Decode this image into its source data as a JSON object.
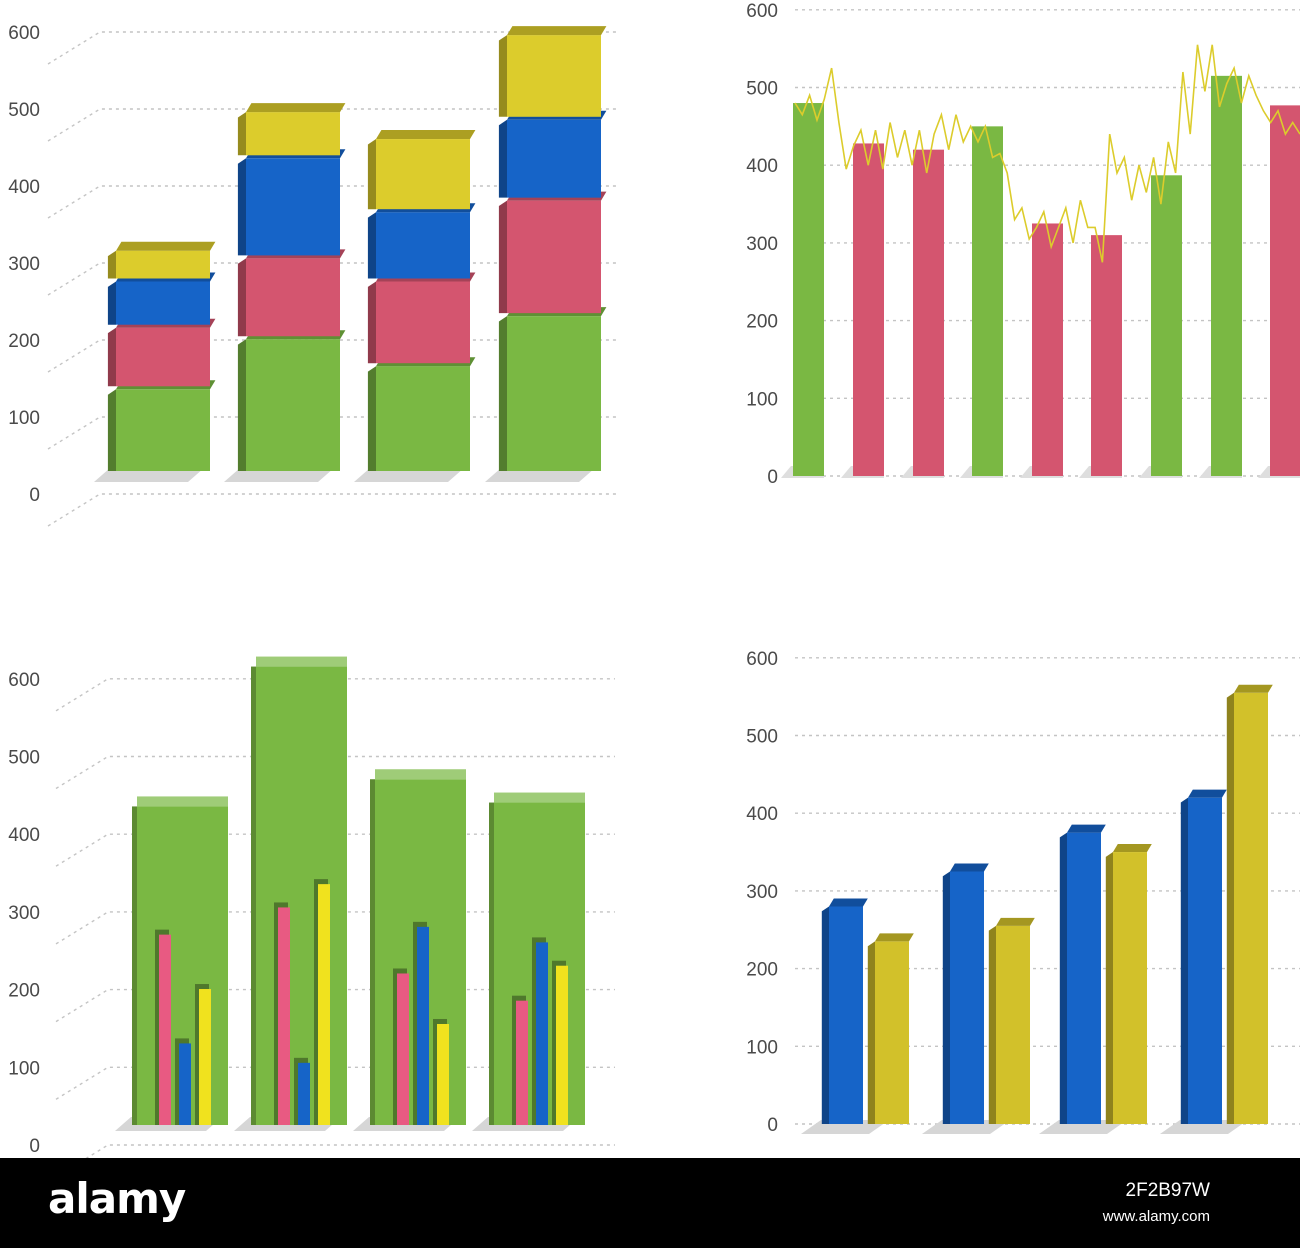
{
  "chart_data": [
    {
      "type": "bar",
      "stacked": true,
      "position": "top-left",
      "yticks": [
        "0",
        "100",
        "200",
        "300",
        "400",
        "500",
        "600"
      ],
      "ylim": [
        0,
        600
      ],
      "grid": true,
      "series": [
        {
          "color": "#7ab843",
          "values": [
            110,
            175,
            140,
            205
          ]
        },
        {
          "color": "#d4556f",
          "values": [
            80,
            105,
            110,
            150
          ]
        },
        {
          "color": "#1664c8",
          "values": [
            60,
            130,
            90,
            105
          ]
        },
        {
          "color": "#dccc2c",
          "values": [
            40,
            60,
            95,
            110
          ]
        }
      ]
    },
    {
      "type": "bar",
      "position": "top-right",
      "yticks": [
        "0",
        "100",
        "200",
        "300",
        "400",
        "500",
        "600"
      ],
      "ylim": [
        0,
        600
      ],
      "grid": true,
      "bars": [
        {
          "value": 480,
          "color": "#7ab843"
        },
        {
          "value": 428,
          "color": "#d4556f"
        },
        {
          "value": 420,
          "color": "#d4556f"
        },
        {
          "value": 450,
          "color": "#7ab843"
        },
        {
          "value": 325,
          "color": "#d4556f"
        },
        {
          "value": 310,
          "color": "#d4556f"
        },
        {
          "value": 387,
          "color": "#7ab843"
        },
        {
          "value": 515,
          "color": "#7ab843"
        },
        {
          "value": 477,
          "color": "#d4556f"
        }
      ],
      "line": {
        "color": "#dccc2c",
        "values": [
          480,
          465,
          490,
          458,
          485,
          525,
          455,
          395,
          425,
          445,
          400,
          445,
          395,
          455,
          410,
          445,
          400,
          445,
          390,
          440,
          465,
          420,
          465,
          430,
          450,
          430,
          450,
          410,
          415,
          390,
          330,
          345,
          305,
          320,
          340,
          295,
          320,
          345,
          300,
          355,
          320,
          320,
          275,
          440,
          390,
          410,
          355,
          400,
          365,
          410,
          350,
          430,
          390,
          520,
          440,
          555,
          495,
          555,
          475,
          505,
          525,
          480,
          515,
          490,
          470,
          455,
          470,
          440,
          455,
          440
        ]
      }
    },
    {
      "type": "bar",
      "position": "bottom-left",
      "yticks": [
        "0",
        "100",
        "200",
        "300",
        "400",
        "500",
        "600"
      ],
      "ylim": [
        0,
        600
      ],
      "grid": true,
      "background_color": "#7ab843",
      "background_values": [
        410,
        590,
        445,
        415
      ],
      "series": [
        {
          "color": "#e85a82",
          "values": [
            245,
            280,
            195,
            160
          ]
        },
        {
          "color": "#1664c8",
          "values": [
            105,
            80,
            255,
            235
          ]
        },
        {
          "color": "#f0e21e",
          "values": [
            175,
            310,
            130,
            205
          ]
        }
      ]
    },
    {
      "type": "bar",
      "position": "bottom-right",
      "yticks": [
        "0",
        "100",
        "200",
        "300",
        "400",
        "500",
        "600"
      ],
      "ylim": [
        0,
        600
      ],
      "grid": true,
      "series": [
        {
          "color": "#1664c8",
          "values": [
            280,
            325,
            375,
            420
          ]
        },
        {
          "color": "#d2c12a",
          "values": [
            235,
            255,
            350,
            555
          ]
        }
      ]
    }
  ],
  "footer": {
    "logo": "alamy",
    "image_id": "2F2B97W",
    "url": "www.alamy.com"
  }
}
